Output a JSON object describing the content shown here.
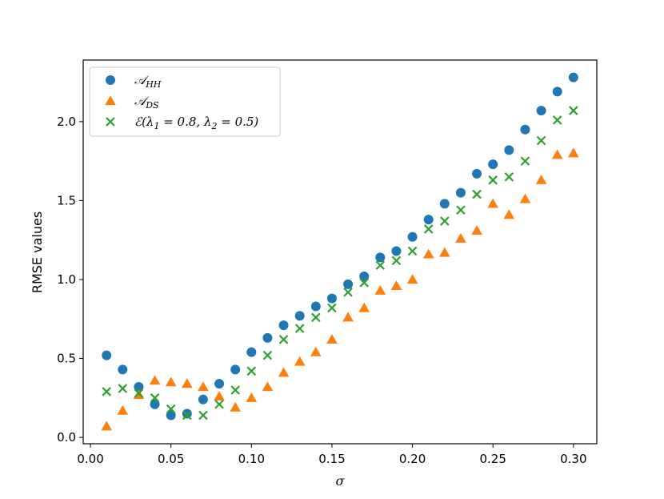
{
  "chart_data": {
    "type": "scatter",
    "title": "",
    "xlabel": "σ",
    "ylabel": "RMSE values",
    "xlim": [
      -0.0045,
      0.3145
    ],
    "ylim": [
      -0.04,
      2.39
    ],
    "x_ticks": [
      0.0,
      0.05,
      0.1,
      0.15,
      0.2,
      0.25,
      0.3
    ],
    "x_tick_labels": [
      "0.00",
      "0.05",
      "0.10",
      "0.15",
      "0.20",
      "0.25",
      "0.30"
    ],
    "y_ticks": [
      0.0,
      0.5,
      1.0,
      1.5,
      2.0
    ],
    "y_tick_labels": [
      "0.0",
      "0.5",
      "1.0",
      "1.5",
      "2.0"
    ],
    "grid": false,
    "legend_position": "top-left",
    "x": [
      0.01,
      0.02,
      0.03,
      0.04,
      0.05,
      0.06,
      0.07,
      0.08,
      0.09,
      0.1,
      0.11,
      0.12,
      0.13,
      0.14,
      0.15,
      0.16,
      0.17,
      0.18,
      0.19,
      0.2,
      0.21,
      0.22,
      0.23,
      0.24,
      0.25,
      0.26,
      0.27,
      0.28,
      0.29,
      0.3
    ],
    "series": [
      {
        "name": "A_HH",
        "legend_main": "𝒜",
        "legend_sub": "HH",
        "color": "#1f77b4",
        "marker": "circle",
        "values": [
          0.52,
          0.43,
          0.32,
          0.21,
          0.14,
          0.15,
          0.24,
          0.34,
          0.43,
          0.54,
          0.63,
          0.71,
          0.77,
          0.83,
          0.88,
          0.97,
          1.02,
          1.14,
          1.18,
          1.27,
          1.38,
          1.48,
          1.55,
          1.67,
          1.73,
          1.82,
          1.95,
          2.07,
          2.19,
          2.28
        ]
      },
      {
        "name": "A_DS",
        "legend_main": "𝒜",
        "legend_sub": "DS",
        "color": "#ff7f0e",
        "marker": "triangle",
        "values": [
          0.07,
          0.17,
          0.27,
          0.36,
          0.35,
          0.34,
          0.32,
          0.26,
          0.19,
          0.25,
          0.32,
          0.41,
          0.48,
          0.54,
          0.62,
          0.76,
          0.82,
          0.93,
          0.96,
          1.0,
          1.16,
          1.17,
          1.26,
          1.31,
          1.48,
          1.41,
          1.51,
          1.63,
          1.79,
          1.8
        ]
      },
      {
        "name": "E(λ1=0.8, λ2=0.5)",
        "legend_main": "ℰ(λ",
        "legend_parts": [
          "ℰ(λ",
          "1",
          " = 0.8, λ",
          "2",
          " = 0.5)"
        ],
        "color": "#2ca02c",
        "marker": "x",
        "values": [
          0.29,
          0.31,
          0.28,
          0.25,
          0.18,
          0.14,
          0.14,
          0.21,
          0.3,
          0.42,
          0.52,
          0.62,
          0.69,
          0.76,
          0.82,
          0.92,
          0.98,
          1.09,
          1.12,
          1.18,
          1.32,
          1.37,
          1.44,
          1.54,
          1.63,
          1.65,
          1.75,
          1.88,
          2.01,
          2.07
        ]
      }
    ]
  }
}
